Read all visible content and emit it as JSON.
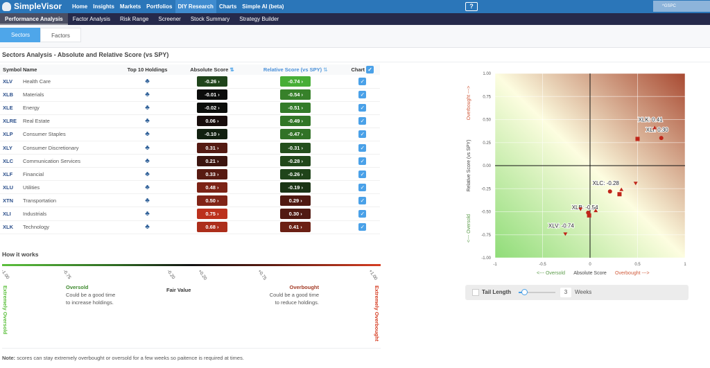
{
  "nav": {
    "brand": "SimpleVisor",
    "items": [
      "Home",
      "Insights",
      "Markets",
      "Portfolios",
      "DIY Research",
      "Charts",
      "Simple AI (beta)"
    ],
    "active": 4,
    "search_value": "^GSPC",
    "help_icon": "help-video-icon"
  },
  "subnav": {
    "items": [
      "Performance Analysis",
      "Factor Analysis",
      "Risk Range",
      "Screener",
      "Stock Summary",
      "Strategy Builder"
    ],
    "active": 0
  },
  "tabs": {
    "sectors": "Sectors",
    "factors": "Factors"
  },
  "title": "Sectors Analysis - Absolute and Relative Score (vs SPY)",
  "table": {
    "headers": {
      "symbol": "Symbol",
      "name": "Name",
      "holdings": "Top 10 Holdings",
      "absolute": "Absolute Score",
      "relative": "Relative Score (vs SPY)",
      "chart": "Chart"
    },
    "rows": [
      {
        "symbol": "XLV",
        "name": "Health Care",
        "abs": "-0.26",
        "rel": "-0.74"
      },
      {
        "symbol": "XLB",
        "name": "Materials",
        "abs": "-0.01",
        "rel": "-0.54"
      },
      {
        "symbol": "XLE",
        "name": "Energy",
        "abs": "-0.02",
        "rel": "-0.51"
      },
      {
        "symbol": "XLRE",
        "name": "Real Estate",
        "abs": "0.06",
        "rel": "-0.49"
      },
      {
        "symbol": "XLP",
        "name": "Consumer Staples",
        "abs": "-0.10",
        "rel": "-0.47"
      },
      {
        "symbol": "XLY",
        "name": "Consumer Discretionary",
        "abs": "0.31",
        "rel": "-0.31"
      },
      {
        "symbol": "XLC",
        "name": "Communication Services",
        "abs": "0.21",
        "rel": "-0.28"
      },
      {
        "symbol": "XLF",
        "name": "Financial",
        "abs": "0.33",
        "rel": "-0.26"
      },
      {
        "symbol": "XLU",
        "name": "Utilities",
        "abs": "0.48",
        "rel": "-0.19"
      },
      {
        "symbol": "XTN",
        "name": "Transportation",
        "abs": "0.50",
        "rel": "0.29"
      },
      {
        "symbol": "XLI",
        "name": "Industrials",
        "abs": "0.75",
        "rel": "0.30"
      },
      {
        "symbol": "XLK",
        "name": "Technology",
        "abs": "0.68",
        "rel": "0.41"
      }
    ]
  },
  "how": {
    "title": "How it works",
    "ticks": [
      "-1.00",
      "-0.75",
      "-0.20",
      "+0.20",
      "+0.75",
      "+1.00"
    ],
    "oversold_title": "Oversold",
    "oversold_text": [
      "Could be a good time",
      "to increase holdings."
    ],
    "fair": "Fair Value",
    "overbought_title": "Overbought",
    "overbought_text": [
      "Could be a good time",
      "to reduce holdings."
    ],
    "ext_oversold": "Extremely Oversold",
    "ext_overbought": "Extremely Overbought"
  },
  "note": {
    "bold": "Note:",
    "text": " scores can stay extremely overbought or oversold for a few weeks so paitence is required at times."
  },
  "colors": {
    "green": "#4cbb3a",
    "red": "#c8341e",
    "marker": "#c0261a",
    "checkbox": "#4aa1e8"
  },
  "chart_data": {
    "type": "scatter",
    "xlabel": "Absolute Score",
    "ylabel": "Relative Score (vs SPY)",
    "x_left_note": "<--- Oversold",
    "x_right_note": "Overbought --->",
    "y_top_note": "Overbought --->",
    "y_bottom_note": "<--- Oversold",
    "xlim": [
      -1,
      1
    ],
    "ylim": [
      -1,
      1
    ],
    "grid": true,
    "xticks": [
      "-1",
      "-0.5",
      "0",
      "0.5",
      "1"
    ],
    "yticks": [
      "1.00",
      "0.75",
      "0.50",
      "0.25",
      "0.00",
      "-0.25",
      "-0.50",
      "-0.75",
      "-1.00"
    ],
    "points": [
      {
        "symbol": "XLV",
        "x": -0.26,
        "y": -0.74,
        "label": "XLV: -0.74"
      },
      {
        "symbol": "XLB",
        "x": -0.01,
        "y": -0.54,
        "label": "XLB: -0.54"
      },
      {
        "symbol": "XLE",
        "x": -0.02,
        "y": -0.51
      },
      {
        "symbol": "XLRE",
        "x": 0.06,
        "y": -0.49
      },
      {
        "symbol": "XLP",
        "x": -0.1,
        "y": -0.47
      },
      {
        "symbol": "XLY",
        "x": 0.31,
        "y": -0.31
      },
      {
        "symbol": "XLC",
        "x": 0.21,
        "y": -0.28,
        "label": "XLC: -0.28"
      },
      {
        "symbol": "XLF",
        "x": 0.33,
        "y": -0.26
      },
      {
        "symbol": "XLU",
        "x": 0.48,
        "y": -0.19
      },
      {
        "symbol": "XTN",
        "x": 0.5,
        "y": 0.29
      },
      {
        "symbol": "XLI",
        "x": 0.75,
        "y": 0.3,
        "label": "XLI: 0.30"
      },
      {
        "symbol": "XLK",
        "x": 0.68,
        "y": 0.41,
        "label": "XLK: 0.41"
      }
    ]
  },
  "tail": {
    "label": "Tail Length",
    "weeks_value": "3",
    "weeks_label": "Weeks",
    "slider_fraction": 0.15
  }
}
